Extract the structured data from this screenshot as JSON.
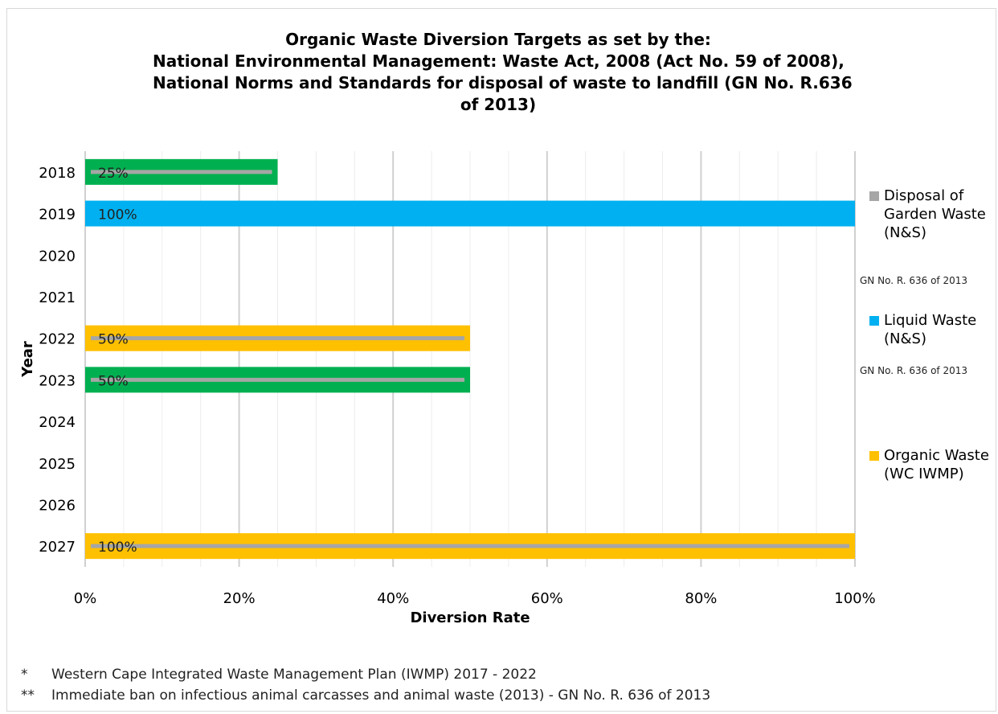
{
  "title_lines": [
    "Organic Waste Diversion Targets as set by the:",
    "National Environmental Management: Waste Act, 2008 (Act No. 59 of 2008),",
    "National Norms and Standards for disposal of waste to landfill (GN No. R.636",
    "of 2013)"
  ],
  "chart_data": {
    "type": "bar",
    "orientation": "horizontal",
    "title": "Organic Waste Diversion Targets as set by the: National Environmental Management: Waste Act, 2008 (Act No. 59 of 2008), National Norms and Standards for disposal of waste to landfill (GN No. R.636 of 2013)",
    "xlabel": "Diversion Rate",
    "ylabel": "Year",
    "categories": [
      "2018",
      "2019",
      "2020",
      "2021",
      "2022",
      "2023",
      "2024",
      "2025",
      "2026",
      "2027"
    ],
    "x_ticks": [
      "0%",
      "20%",
      "40%",
      "60%",
      "80%",
      "100%"
    ],
    "xlim": [
      0,
      100
    ],
    "grid": true,
    "legend_position": "right",
    "bars": [
      {
        "year": "2018",
        "value": 25,
        "label": "25%",
        "color": "#00b050"
      },
      {
        "year": "2019",
        "value": 100,
        "label": "100%",
        "color": "#00b0f0"
      },
      {
        "year": "2022",
        "value": 50,
        "label": "50%",
        "color": "#ffc000"
      },
      {
        "year": "2023",
        "value": 50,
        "label": "50%",
        "color": "#00b050"
      },
      {
        "year": "2027",
        "value": 100,
        "label": "100%",
        "color": "#ffc000"
      }
    ],
    "lines": [
      {
        "year": "2018",
        "value": 25,
        "color": "#a6a6a6"
      },
      {
        "year": "2022",
        "value": 50,
        "color": "#a6a6a6"
      },
      {
        "year": "2023",
        "value": 50,
        "color": "#a6a6a6"
      },
      {
        "year": "2027",
        "value": 100,
        "color": "#a6a6a6"
      }
    ],
    "series": [
      {
        "name": "Disposal of Garden Waste (N&S)",
        "note": "GN No. R. 636 of 2013",
        "color": "#a6a6a6"
      },
      {
        "name": "Liquid Waste (N&S)",
        "note": "GN No. R. 636 of 2013",
        "color": "#00b0f0"
      },
      {
        "name": "Organic Waste (WC IWMP)",
        "note": "",
        "color": "#ffc000"
      }
    ]
  },
  "legend": [
    {
      "label": "Disposal of Garden Waste (N&S)",
      "note": "GN No. R. 636 of 2013",
      "color": "#a6a6a6"
    },
    {
      "label": "Liquid Waste (N&S)",
      "note": "GN No. R. 636 of 2013",
      "color": "#00b0f0"
    },
    {
      "label": "Organic Waste (WC IWMP)",
      "note": "",
      "color": "#ffc000"
    }
  ],
  "footnotes": [
    {
      "marker": "*",
      "text": "Western Cape Integrated Waste Management Plan (IWMP) 2017 - 2022"
    },
    {
      "marker": "**",
      "text": "Immediate ban on infectious animal carcasses and animal waste (2013) - GN No. R. 636 of 2013"
    }
  ]
}
